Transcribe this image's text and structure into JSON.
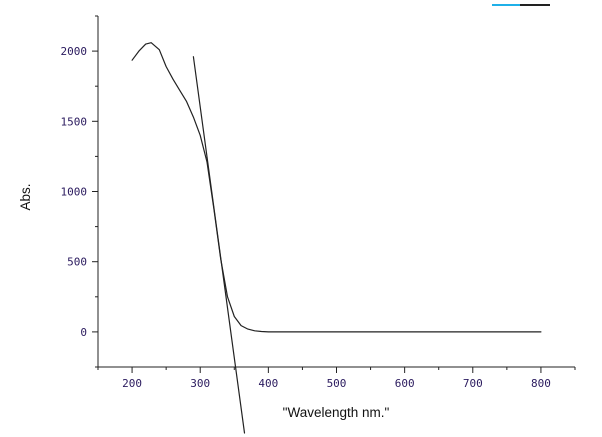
{
  "chart_data": {
    "type": "line",
    "title": "",
    "xlabel": "\"Wavelength nm.\"",
    "ylabel": "Abs.",
    "xlim": [
      150,
      850
    ],
    "ylim": [
      -250,
      2250
    ],
    "x_ticks": [
      200,
      300,
      400,
      500,
      600,
      700,
      800
    ],
    "y_ticks": [
      0,
      500,
      1000,
      1500,
      2000
    ],
    "x_tick_labels": [
      "200",
      "300",
      "400",
      "500",
      "600",
      "700",
      "800"
    ],
    "y_tick_labels": [
      "0",
      "500",
      "1000",
      "1500",
      "2000"
    ],
    "grid": false,
    "legend": "none",
    "series": [
      {
        "x": [
          200,
          210,
          220,
          228,
          240,
          250,
          260,
          270,
          280,
          290,
          300,
          310,
          320,
          330,
          340,
          350,
          360,
          370,
          380,
          390,
          400,
          450,
          500,
          600,
          700,
          800
        ],
        "y": [
          1935,
          2000,
          2050,
          2060,
          2010,
          1890,
          1800,
          1720,
          1640,
          1530,
          1400,
          1210,
          880,
          520,
          250,
          110,
          45,
          20,
          8,
          3,
          0,
          0,
          0,
          0,
          0,
          0
        ],
        "color": "#222222"
      },
      {
        "x": [
          290,
          365
        ],
        "y": [
          1960,
          -720
        ],
        "color": "#222222"
      }
    ]
  },
  "decor": {
    "top_right_marks": [
      "#1fb0e8",
      "#222222"
    ]
  }
}
